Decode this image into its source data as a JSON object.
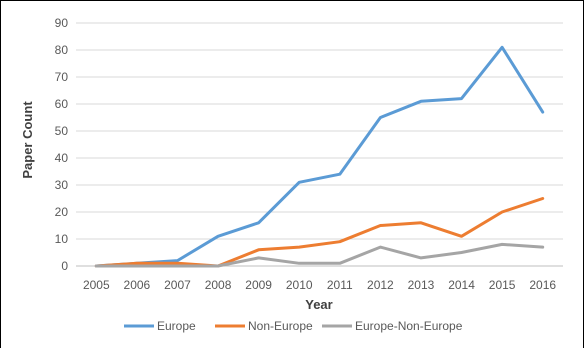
{
  "chart_data": {
    "type": "line",
    "title": "",
    "xlabel": "Year",
    "ylabel": "Paper Count",
    "x": [
      "2005",
      "2006",
      "2007",
      "2008",
      "2009",
      "2010",
      "2011",
      "2012",
      "2013",
      "2014",
      "2015",
      "2016"
    ],
    "ylim": [
      0,
      90
    ],
    "yticks": [
      0,
      10,
      20,
      30,
      40,
      50,
      60,
      70,
      80,
      90
    ],
    "grid": true,
    "legend_position": "bottom",
    "series": [
      {
        "name": "Europe",
        "color": "#5b9bd5",
        "values": [
          0,
          1,
          2,
          11,
          16,
          31,
          34,
          55,
          61,
          62,
          81,
          57
        ]
      },
      {
        "name": "Non-Europe",
        "color": "#ed7d31",
        "values": [
          0,
          1,
          1,
          0,
          6,
          7,
          9,
          15,
          16,
          11,
          20,
          25
        ]
      },
      {
        "name": "Europe-Non-Europe",
        "color": "#a5a5a5",
        "values": [
          0,
          0,
          0,
          0,
          3,
          1,
          1,
          7,
          3,
          5,
          8,
          7
        ]
      }
    ]
  }
}
